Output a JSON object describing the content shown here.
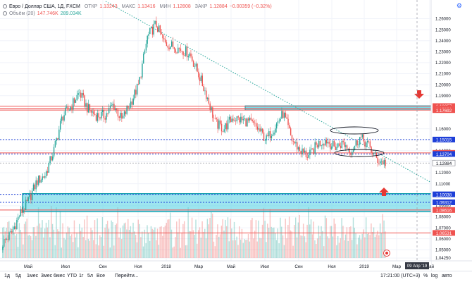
{
  "legend": {
    "symbol": "Евро / Доллар США, 1Д, FXCM",
    "open_label": "ОТКР",
    "open": "1.13243",
    "high_label": "МАКС",
    "high": "1.13416",
    "low_label": "МИН",
    "low": "1.12808",
    "close_label": "ЗАКР",
    "close": "1.12884",
    "change": "−0.00359 (−0.32%)",
    "volume_label": "Объём (20)",
    "volume_1": "147.746K",
    "volume_2": "289.034K"
  },
  "time_axis": {
    "labels": [
      "Май",
      "Июл",
      "Сен",
      "Ноя",
      "2018",
      "Мар",
      "Май",
      "Июл",
      "Сен",
      "Ноя",
      "2019",
      "Мар",
      "Май"
    ],
    "crosshair_date": "09 Апр '19"
  },
  "bottom_bar": {
    "ranges": [
      "1д",
      "5д",
      "1мес",
      "3мес",
      "6мес",
      "YTD",
      "1г",
      "5л",
      "Все"
    ],
    "goto": "Перейти...",
    "time": "17:21:00 (UTC+3)",
    "toggles": [
      "%",
      "log",
      "авто"
    ]
  },
  "chart_data": {
    "type": "candlestick",
    "series_name": "Евро / Доллар США, 1Д, FXCM",
    "x_range": [
      "2017-04",
      "2019-05"
    ],
    "ylim": [
      1.0425,
      1.268
    ],
    "price_ticks": [
      "1.26000",
      "1.25000",
      "1.24000",
      "1.23000",
      "1.22000",
      "1.21000",
      "1.20000",
      "1.19000",
      "1.16000",
      "1.15000",
      "1.14000",
      "1.13000",
      "1.12000",
      "1.11000",
      "1.10000",
      "1.09000",
      "1.08000",
      "1.07000",
      "1.06000",
      "1.05000",
      "1.04250"
    ],
    "approx_closes": [
      1.056,
      1.065,
      1.082,
      1.094,
      1.112,
      1.118,
      1.14,
      1.171,
      1.18,
      1.193,
      1.178,
      1.172,
      1.172,
      1.182,
      1.168,
      1.183,
      1.2,
      1.243,
      1.255,
      1.238,
      1.235,
      1.232,
      1.228,
      1.21,
      1.19,
      1.165,
      1.16,
      1.17,
      1.168,
      1.166,
      1.16,
      1.15,
      1.162,
      1.174,
      1.15,
      1.14,
      1.135,
      1.146,
      1.15,
      1.143,
      1.147,
      1.14,
      1.152,
      1.145,
      1.132,
      1.129
    ],
    "levels": [
      {
        "price": "1.18057",
        "kind": "resistance",
        "color": "#ef5350"
      },
      {
        "price": "1.17851",
        "kind": "resistance",
        "color": "#ef5350"
      },
      {
        "price": "1.17692",
        "kind": "resistance",
        "color": "#ef5350"
      },
      {
        "price": "1.15015",
        "kind": "level",
        "color": "#1e3fd8"
      },
      {
        "price": "1.13804",
        "kind": "level",
        "color": "#ef5350"
      },
      {
        "price": "1.13704",
        "kind": "level",
        "color": "#1e3fd8"
      },
      {
        "price": "1.12884",
        "kind": "last-price",
        "color": "#787b86"
      },
      {
        "price": "1.10038",
        "kind": "level",
        "color": "#1e3fd8"
      },
      {
        "price": "1.09312",
        "kind": "level",
        "color": "#1e3fd8"
      },
      {
        "price": "1.08616",
        "kind": "level",
        "color": "#ef5350"
      },
      {
        "price": "1.06531",
        "kind": "level",
        "color": "#ef5350"
      }
    ],
    "zones": [
      {
        "from": 1.177,
        "to": 1.1808,
        "color": "#4dd0e1"
      },
      {
        "from": 1.0845,
        "to": 1.101,
        "color": "#4dd0e1"
      }
    ],
    "trendline": {
      "from": [
        "2017-04",
        1.268
      ],
      "to": [
        "2019-05",
        1.084
      ],
      "style": "dotted",
      "color": "#26a69a"
    },
    "volume": {
      "name": "Объём (20)",
      "up_color": "#26a69a",
      "down_color": "#ef5350"
    }
  }
}
